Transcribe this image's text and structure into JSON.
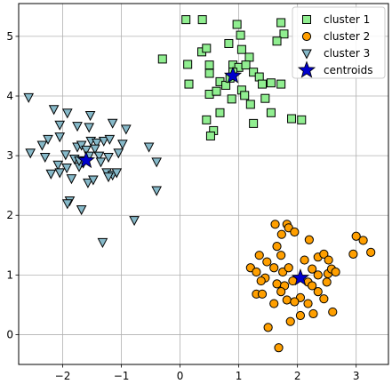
{
  "chart_data": {
    "type": "scatter",
    "title": "",
    "xlabel": "",
    "ylabel": "",
    "xlim": [
      -2.75,
      3.55
    ],
    "ylim": [
      -0.5,
      5.55
    ],
    "xticks": [
      -2,
      -1,
      0,
      1,
      2,
      3
    ],
    "yticks": [
      0,
      1,
      2,
      3,
      4,
      5
    ],
    "xtick_labels": [
      "−2",
      "−1",
      "0",
      "1",
      "2",
      "3"
    ],
    "ytick_labels": [
      "0",
      "1",
      "2",
      "3",
      "4",
      "5"
    ],
    "grid": true,
    "legend_position": "top-right",
    "series": [
      {
        "name": "cluster 1",
        "marker": "square",
        "color": "#90ee90",
        "points": [
          [
            0.1,
            5.28
          ],
          [
            0.38,
            5.28
          ],
          [
            0.97,
            5.2
          ],
          [
            1.03,
            5.02
          ],
          [
            1.72,
            5.23
          ],
          [
            1.77,
            5.04
          ],
          [
            1.65,
            4.92
          ],
          [
            -0.3,
            4.62
          ],
          [
            0.37,
            4.74
          ],
          [
            0.45,
            4.8
          ],
          [
            0.13,
            4.53
          ],
          [
            0.83,
            4.88
          ],
          [
            1.05,
            4.78
          ],
          [
            1.18,
            4.65
          ],
          [
            0.15,
            4.2
          ],
          [
            0.5,
            4.52
          ],
          [
            0.5,
            4.38
          ],
          [
            0.9,
            4.52
          ],
          [
            1.0,
            4.48
          ],
          [
            1.12,
            4.52
          ],
          [
            1.25,
            4.4
          ],
          [
            1.35,
            4.32
          ],
          [
            1.4,
            4.2
          ],
          [
            1.55,
            4.22
          ],
          [
            1.72,
            4.2
          ],
          [
            0.68,
            4.24
          ],
          [
            0.78,
            4.18
          ],
          [
            0.5,
            4.03
          ],
          [
            0.62,
            4.08
          ],
          [
            0.85,
            4.3
          ],
          [
            1.05,
            4.1
          ],
          [
            1.1,
            4.01
          ],
          [
            0.88,
            3.95
          ],
          [
            1.45,
            3.96
          ],
          [
            1.2,
            3.86
          ],
          [
            0.68,
            3.72
          ],
          [
            0.45,
            3.6
          ],
          [
            1.55,
            3.72
          ],
          [
            1.9,
            3.62
          ],
          [
            2.07,
            3.6
          ],
          [
            0.57,
            3.42
          ],
          [
            0.52,
            3.33
          ],
          [
            1.25,
            3.54
          ],
          [
            0.9,
            4.4
          ]
        ]
      },
      {
        "name": "cluster 2",
        "marker": "circle",
        "color": "#ff9f00",
        "points": [
          [
            1.62,
            1.85
          ],
          [
            1.82,
            1.85
          ],
          [
            1.85,
            1.79
          ],
          [
            1.95,
            1.72
          ],
          [
            1.73,
            1.68
          ],
          [
            1.65,
            1.48
          ],
          [
            2.2,
            1.59
          ],
          [
            3.0,
            1.65
          ],
          [
            3.12,
            1.58
          ],
          [
            3.25,
            1.38
          ],
          [
            2.95,
            1.35
          ],
          [
            1.72,
            1.33
          ],
          [
            1.35,
            1.33
          ],
          [
            1.48,
            1.22
          ],
          [
            1.6,
            1.12
          ],
          [
            2.12,
            1.25
          ],
          [
            2.35,
            1.3
          ],
          [
            2.45,
            1.35
          ],
          [
            2.53,
            1.25
          ],
          [
            1.2,
            1.12
          ],
          [
            1.3,
            1.05
          ],
          [
            1.45,
            0.95
          ],
          [
            1.75,
            1.05
          ],
          [
            1.85,
            1.12
          ],
          [
            2.25,
            1.1
          ],
          [
            2.35,
            1.0
          ],
          [
            2.52,
            1.02
          ],
          [
            2.58,
            1.1
          ],
          [
            2.65,
            1.05
          ],
          [
            1.38,
            0.9
          ],
          [
            1.65,
            0.85
          ],
          [
            1.78,
            0.82
          ],
          [
            1.92,
            0.9
          ],
          [
            2.18,
            0.88
          ],
          [
            2.5,
            0.88
          ],
          [
            1.3,
            0.68
          ],
          [
            1.4,
            0.68
          ],
          [
            1.72,
            0.72
          ],
          [
            2.05,
            0.62
          ],
          [
            2.35,
            0.72
          ],
          [
            2.45,
            0.6
          ],
          [
            1.6,
            0.52
          ],
          [
            1.82,
            0.58
          ],
          [
            1.95,
            0.55
          ],
          [
            2.18,
            0.52
          ],
          [
            2.27,
            0.35
          ],
          [
            2.6,
            0.38
          ],
          [
            2.05,
            0.32
          ],
          [
            1.88,
            0.22
          ],
          [
            1.5,
            0.12
          ],
          [
            1.68,
            -0.22
          ],
          [
            2.25,
            0.82
          ]
        ]
      },
      {
        "name": "cluster 3",
        "marker": "triangle-down",
        "color": "#86b9c9",
        "points": [
          [
            -2.58,
            3.98
          ],
          [
            -2.15,
            3.78
          ],
          [
            -1.92,
            3.72
          ],
          [
            -1.53,
            3.68
          ],
          [
            -2.05,
            3.52
          ],
          [
            -1.75,
            3.5
          ],
          [
            -1.55,
            3.48
          ],
          [
            -1.15,
            3.55
          ],
          [
            -0.92,
            3.45
          ],
          [
            -2.25,
            3.28
          ],
          [
            -2.05,
            3.32
          ],
          [
            -2.35,
            3.18
          ],
          [
            -1.52,
            3.25
          ],
          [
            -1.42,
            3.22
          ],
          [
            -1.3,
            3.25
          ],
          [
            -1.2,
            3.28
          ],
          [
            -0.98,
            3.2
          ],
          [
            -0.53,
            3.15
          ],
          [
            -1.75,
            3.15
          ],
          [
            -1.68,
            3.18
          ],
          [
            -1.6,
            3.1
          ],
          [
            -1.45,
            3.12
          ],
          [
            -2.55,
            3.05
          ],
          [
            -2.3,
            2.98
          ],
          [
            -1.95,
            3.02
          ],
          [
            -1.8,
            2.95
          ],
          [
            -1.65,
            2.88
          ],
          [
            -1.55,
            3.0
          ],
          [
            -1.38,
            3.0
          ],
          [
            -1.22,
            2.98
          ],
          [
            -1.05,
            3.05
          ],
          [
            -0.4,
            2.9
          ],
          [
            -2.08,
            2.85
          ],
          [
            -1.93,
            2.8
          ],
          [
            -1.72,
            2.82
          ],
          [
            -1.35,
            2.9
          ],
          [
            -1.25,
            2.72
          ],
          [
            -1.15,
            2.68
          ],
          [
            -1.08,
            2.72
          ],
          [
            -2.2,
            2.7
          ],
          [
            -2.05,
            2.72
          ],
          [
            -1.85,
            2.62
          ],
          [
            -1.57,
            2.55
          ],
          [
            -1.48,
            2.6
          ],
          [
            -1.22,
            2.65
          ],
          [
            -0.4,
            2.42
          ],
          [
            -1.88,
            2.25
          ],
          [
            -1.92,
            2.2
          ],
          [
            -1.68,
            2.1
          ],
          [
            -0.78,
            1.92
          ],
          [
            -1.32,
            1.55
          ],
          [
            -1.72,
            2.92
          ]
        ]
      },
      {
        "name": "centroids",
        "marker": "star",
        "color": "#0000cd",
        "points": [
          [
            0.9,
            4.34
          ],
          [
            2.05,
            0.95
          ],
          [
            -1.6,
            2.92
          ]
        ]
      }
    ]
  }
}
